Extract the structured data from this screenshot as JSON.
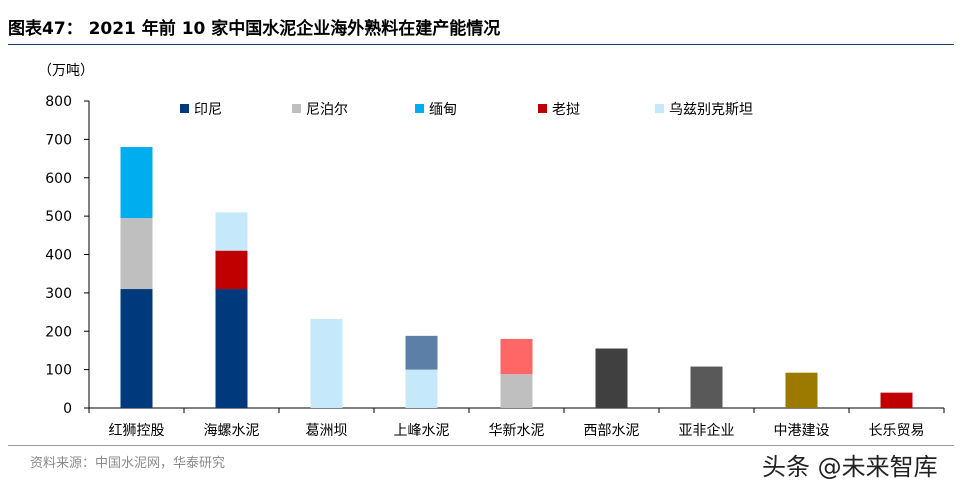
{
  "header": {
    "title": "图表47： 2021 年前 10 家中国水泥企业海外熟料在建产能情况"
  },
  "footer": {
    "source": "资料来源：中国水泥网，华泰研究",
    "watermark": "头条 @未来智库"
  },
  "chart_data": {
    "type": "bar",
    "stacked": true,
    "unit_label": "（万吨）",
    "ylim": [
      0,
      800
    ],
    "yticks": [
      0,
      100,
      200,
      300,
      400,
      500,
      600,
      700,
      800
    ],
    "legend_position": "top",
    "categories": [
      "红狮控股",
      "海螺水泥",
      "葛洲坝",
      "上峰水泥",
      "华新水泥",
      "西部水泥",
      "亚非企业",
      "中港建设",
      "长乐贸易"
    ],
    "series": [
      {
        "name": "印尼",
        "color": "#003a7d",
        "values": [
          310,
          310,
          0,
          0,
          0,
          0,
          0,
          0,
          0
        ]
      },
      {
        "name": "尼泊尔",
        "color": "#bfbfbf",
        "values": [
          185,
          0,
          0,
          0,
          0,
          0,
          0,
          0,
          0
        ]
      },
      {
        "name": "缅甸",
        "color": "#00aeef",
        "values": [
          185,
          0,
          0,
          0,
          0,
          0,
          0,
          0,
          0
        ]
      },
      {
        "name": "老挝",
        "color": "#c00000",
        "values": [
          0,
          100,
          0,
          0,
          0,
          0,
          0,
          0,
          0
        ]
      },
      {
        "name": "乌兹别克斯坦",
        "color": "#c5e9fb",
        "values": [
          0,
          100,
          232,
          100,
          0,
          0,
          0,
          0,
          0
        ]
      }
    ],
    "other_segments": [
      {
        "category": "上峰水泥",
        "base": 100,
        "value": 88,
        "color": "#5b7fa6"
      },
      {
        "category": "华新水泥",
        "base": 0,
        "value": 88,
        "color": "#bfbfbf"
      },
      {
        "category": "华新水泥",
        "base": 88,
        "value": 92,
        "color": "#ff6666"
      },
      {
        "category": "西部水泥",
        "base": 0,
        "value": 155,
        "color": "#404040"
      },
      {
        "category": "亚非企业",
        "base": 0,
        "value": 108,
        "color": "#595959"
      },
      {
        "category": "中港建设",
        "base": 0,
        "value": 92,
        "color": "#9c7a00"
      },
      {
        "category": "长乐贸易",
        "base": 0,
        "value": 40,
        "color": "#c00000"
      }
    ]
  }
}
